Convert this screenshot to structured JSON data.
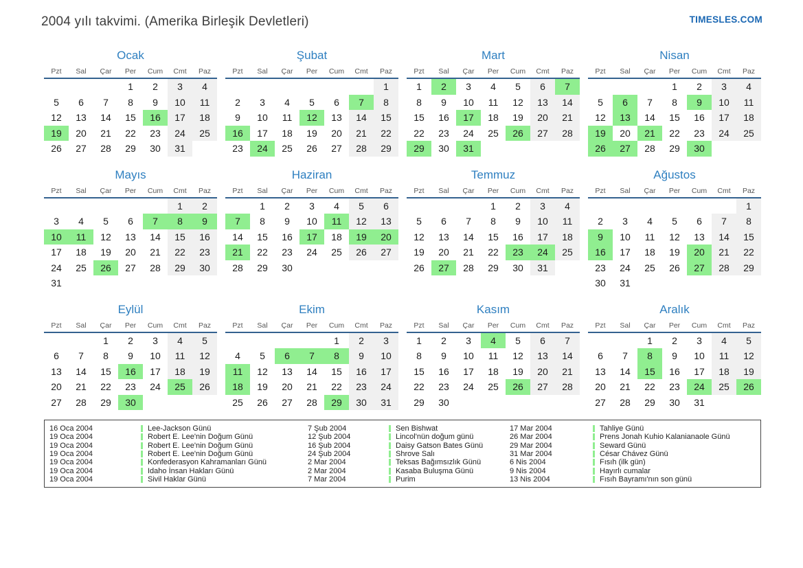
{
  "header": {
    "title": "2004 yılı takvimi. (Amerika Birleşik Devletleri)",
    "brand": "TIMESLES.COM"
  },
  "colors": {
    "month_title_blue": "#2e7fc0",
    "brand_blue": "#1a67b3",
    "weekday_rule_blue": "#33618f",
    "holiday_green": "#90ee90",
    "weekend_gray": "#f0f0f0"
  },
  "weekdays": [
    "Pzt",
    "Sal",
    "Çar",
    "Per",
    "Cum",
    "Cmt",
    "Paz"
  ],
  "months": [
    {
      "name": "Ocak",
      "start": 3,
      "days": 31,
      "highlight": [
        16,
        19
      ]
    },
    {
      "name": "Şubat",
      "start": 6,
      "days": 29,
      "highlight": [
        7,
        12,
        16,
        24
      ]
    },
    {
      "name": "Mart",
      "start": 0,
      "days": 31,
      "highlight": [
        2,
        7,
        17,
        26,
        29,
        31
      ]
    },
    {
      "name": "Nisan",
      "start": 3,
      "days": 30,
      "highlight": [
        6,
        9,
        13,
        19,
        21,
        26,
        27,
        30
      ]
    },
    {
      "name": "Mayıs",
      "start": 5,
      "days": 31,
      "highlight": [
        7,
        8,
        9,
        10,
        11,
        26
      ]
    },
    {
      "name": "Haziran",
      "start": 1,
      "days": 30,
      "highlight": [
        7,
        11,
        17,
        19,
        20,
        21
      ]
    },
    {
      "name": "Temmuz",
      "start": 3,
      "days": 31,
      "highlight": [
        23,
        24,
        27
      ]
    },
    {
      "name": "Ağustos",
      "start": 6,
      "days": 31,
      "highlight": [
        9,
        16,
        20,
        27
      ]
    },
    {
      "name": "Eylül",
      "start": 2,
      "days": 30,
      "highlight": [
        16,
        25,
        30
      ]
    },
    {
      "name": "Ekim",
      "start": 4,
      "days": 31,
      "highlight": [
        6,
        7,
        8,
        11,
        18,
        29
      ]
    },
    {
      "name": "Kasım",
      "start": 0,
      "days": 30,
      "highlight": [
        4,
        26
      ]
    },
    {
      "name": "Aralık",
      "start": 2,
      "days": 31,
      "highlight": [
        8,
        15,
        24,
        26
      ]
    }
  ],
  "legend": {
    "columns": [
      [
        {
          "date": "16 Oca 2004",
          "name": "Lee-Jackson Günü"
        },
        {
          "date": "19 Oca 2004",
          "name": "Robert E. Lee'nin Doğum Günü"
        },
        {
          "date": "19 Oca 2004",
          "name": "Robert E. Lee'nin Doğum Günü"
        },
        {
          "date": "19 Oca 2004",
          "name": "Robert E. Lee'nin Doğum Günü"
        },
        {
          "date": "19 Oca 2004",
          "name": "Konfederasyon Kahramanları Günü"
        },
        {
          "date": "19 Oca 2004",
          "name": "Idaho İnsan Hakları Günü"
        },
        {
          "date": "19 Oca 2004",
          "name": "Sivil Haklar Günü"
        }
      ],
      [
        {
          "date": "7 Şub 2004",
          "name": "Sen Bishwat"
        },
        {
          "date": "12 Şub 2004",
          "name": "Lincol'nün doğum günü"
        },
        {
          "date": "16 Şub 2004",
          "name": "Daisy Gatson Bates Günü"
        },
        {
          "date": "24 Şub 2004",
          "name": "Shrove Salı"
        },
        {
          "date": "2 Mar 2004",
          "name": "Teksas Bağımsızlık Günü"
        },
        {
          "date": "2 Mar 2004",
          "name": "Kasaba Buluşma Günü"
        },
        {
          "date": "7 Mar 2004",
          "name": "Purim"
        }
      ],
      [
        {
          "date": "17 Mar 2004",
          "name": "Tahliye Günü"
        },
        {
          "date": "26 Mar 2004",
          "name": "Prens Jonah Kuhio Kalanianaole Günü"
        },
        {
          "date": "29 Mar 2004",
          "name": "Seward Günü"
        },
        {
          "date": "31 Mar 2004",
          "name": "César Chávez Günü"
        },
        {
          "date": "6 Nis 2004",
          "name": "Fısıh (ilk gün)"
        },
        {
          "date": "9 Nis 2004",
          "name": "Hayırlı cumalar"
        },
        {
          "date": "13 Nis 2004",
          "name": "Fısıh Bayramı'nın son günü"
        }
      ]
    ]
  }
}
